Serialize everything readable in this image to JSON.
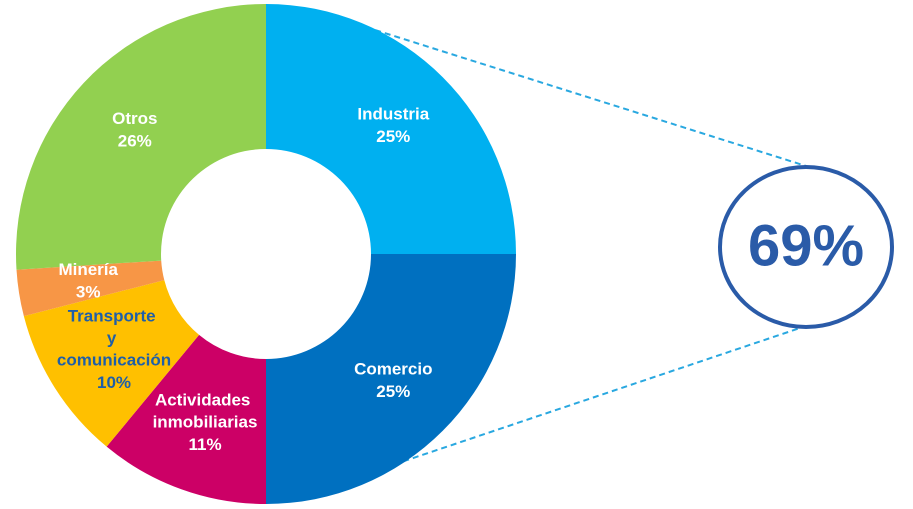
{
  "chart_data": {
    "type": "donut",
    "categories": [
      "Industria",
      "Comercio",
      "Actividades inmobiliarias",
      "Transporte y comunicación",
      "Minería",
      "Otros"
    ],
    "values": [
      25,
      25,
      11,
      10,
      3,
      26
    ],
    "value_labels": [
      "25%",
      "25%",
      "11%",
      "10%",
      "3%",
      "26%"
    ],
    "colors": [
      "#00b0f0",
      "#0070c0",
      "#cc0066",
      "#ffc000",
      "#f79646",
      "#92d050"
    ],
    "label_colors": [
      "#ffffff",
      "#ffffff",
      "#ffffff",
      "#1f5fa8",
      "#ffffff",
      "#ffffff"
    ],
    "annotation": "69%",
    "annotation_color": "#2a5ba8",
    "connector_color": "#29a8e0"
  }
}
